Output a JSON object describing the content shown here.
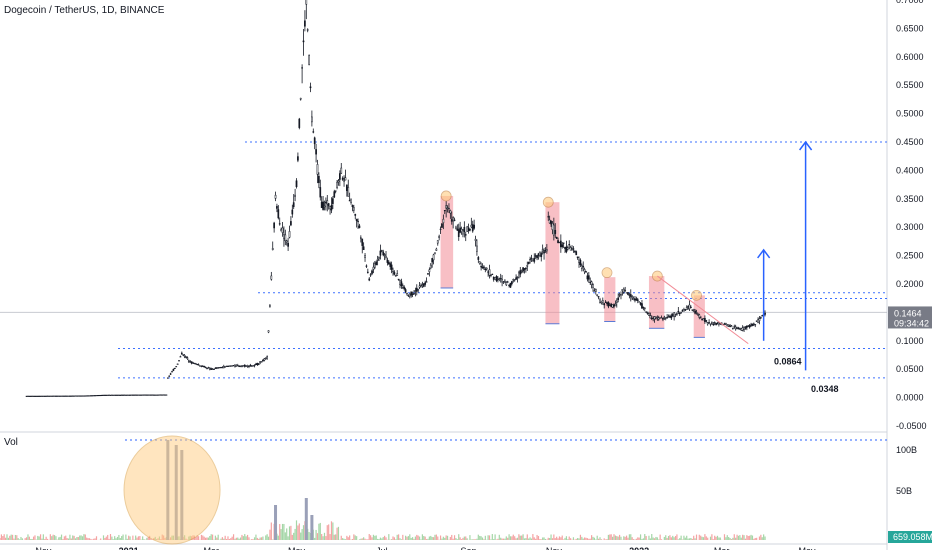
{
  "header": {
    "symbol_title": "Dogecoin / TetherUS, 1D, BINANCE"
  },
  "volume_pane": {
    "label": "Vol"
  },
  "chart_data": {
    "type": "candlestick",
    "title": "Dogecoin / TetherUS, 1D, BINANCE",
    "ylim": [
      -0.05,
      0.7
    ],
    "price_axis_ticks": [
      "0.7000",
      "0.6500",
      "0.6000",
      "0.5500",
      "0.5000",
      "0.4500",
      "0.4000",
      "0.3500",
      "0.3000",
      "0.2500",
      "0.2000",
      "0.1500",
      "0.1000",
      "0.0500",
      "0.0000",
      "-0.0500"
    ],
    "time_axis_ticks": [
      "Nov",
      "2021",
      "Mar",
      "May",
      "Jul",
      "Sep",
      "Nov",
      "2022",
      "Mar",
      "May"
    ],
    "volume_axis_ticks": [
      "100B",
      "50B"
    ],
    "last_price": "0.1464",
    "countdown": "09:34:42",
    "last_volume": "659.058M",
    "horizontal_levels": [
      0.45,
      0.1845,
      0.1745,
      0.15,
      0.0864,
      0.0348
    ],
    "level_labels": [
      "0.0864",
      "0.0348"
    ],
    "price_path": [
      [
        "2020-10-20",
        0.0027
      ],
      [
        "2020-11-20",
        0.003
      ],
      [
        "2020-12-01",
        0.0033
      ],
      [
        "2020-12-15",
        0.0045
      ],
      [
        "2020-12-31",
        0.0047
      ],
      [
        "2021-01-28",
        0.005
      ],
      [
        "2021-01-29",
        0.035
      ],
      [
        "2021-02-05",
        0.059
      ],
      [
        "2021-02-08",
        0.078
      ],
      [
        "2021-02-15",
        0.062
      ],
      [
        "2021-03-01",
        0.05
      ],
      [
        "2021-03-15",
        0.056
      ],
      [
        "2021-04-01",
        0.056
      ],
      [
        "2021-04-10",
        0.07
      ],
      [
        "2021-04-16",
        0.35
      ],
      [
        "2021-04-20",
        0.3
      ],
      [
        "2021-04-25",
        0.27
      ],
      [
        "2021-05-01",
        0.38
      ],
      [
        "2021-05-05",
        0.58
      ],
      [
        "2021-05-08",
        0.7
      ],
      [
        "2021-05-12",
        0.49
      ],
      [
        "2021-05-19",
        0.34
      ],
      [
        "2021-05-26",
        0.34
      ],
      [
        "2021-06-02",
        0.4
      ],
      [
        "2021-06-15",
        0.3
      ],
      [
        "2021-06-22",
        0.21
      ],
      [
        "2021-07-01",
        0.26
      ],
      [
        "2021-07-10",
        0.22
      ],
      [
        "2021-07-20",
        0.18
      ],
      [
        "2021-08-01",
        0.2
      ],
      [
        "2021-08-10",
        0.27
      ],
      [
        "2021-08-16",
        0.34
      ],
      [
        "2021-08-25",
        0.29
      ],
      [
        "2021-09-05",
        0.3
      ],
      [
        "2021-09-08",
        0.24
      ],
      [
        "2021-09-20",
        0.21
      ],
      [
        "2021-10-01",
        0.2
      ],
      [
        "2021-10-15",
        0.24
      ],
      [
        "2021-10-27",
        0.26
      ],
      [
        "2021-10-28",
        0.32
      ],
      [
        "2021-11-05",
        0.27
      ],
      [
        "2021-11-15",
        0.26
      ],
      [
        "2021-11-26",
        0.21
      ],
      [
        "2021-12-04",
        0.17
      ],
      [
        "2021-12-14",
        0.16
      ],
      [
        "2021-12-20",
        0.19
      ],
      [
        "2021-12-31",
        0.17
      ],
      [
        "2022-01-10",
        0.14
      ],
      [
        "2022-01-21",
        0.14
      ],
      [
        "2022-02-07",
        0.16
      ],
      [
        "2022-02-10",
        0.15
      ],
      [
        "2022-02-20",
        0.13
      ],
      [
        "2022-03-01",
        0.13
      ],
      [
        "2022-03-15",
        0.12
      ],
      [
        "2022-03-25",
        0.13
      ],
      [
        "2022-04-01",
        0.1464
      ]
    ],
    "highlight_zones": [
      {
        "from": "2021-08-12",
        "to": "2021-08-21",
        "low": 0.193,
        "high": 0.355
      },
      {
        "from": "2021-10-26",
        "to": "2021-11-05",
        "low": 0.13,
        "high": 0.344
      },
      {
        "from": "2021-12-07",
        "to": "2021-12-15",
        "low": 0.134,
        "high": 0.212
      },
      {
        "from": "2022-01-08",
        "to": "2022-01-19",
        "low": 0.122,
        "high": 0.214
      },
      {
        "from": "2022-02-09",
        "to": "2022-02-17",
        "low": 0.106,
        "high": 0.18
      }
    ],
    "peak_circles": [
      [
        "2021-08-16",
        0.355
      ],
      [
        "2021-10-28",
        0.344
      ],
      [
        "2021-12-09",
        0.22
      ],
      [
        "2022-01-14",
        0.214
      ],
      [
        "2022-02-11",
        0.18
      ]
    ],
    "target_arrows": [
      {
        "date": "2022-03-31",
        "from": 0.1,
        "to": 0.26
      },
      {
        "date": "2022-04-30",
        "from": 0.048,
        "to": 0.45
      }
    ],
    "volume_highlight_circle": {
      "center": "2021-02-01"
    },
    "volume_spikes": [
      [
        "2021-01-29",
        1.0
      ],
      [
        "2021-02-04",
        0.95
      ],
      [
        "2021-02-08",
        0.9
      ],
      [
        "2021-04-16",
        0.35
      ],
      [
        "2021-05-08",
        0.42
      ],
      [
        "2021-05-12",
        0.25
      ]
    ],
    "grid": false,
    "legend": "none"
  }
}
